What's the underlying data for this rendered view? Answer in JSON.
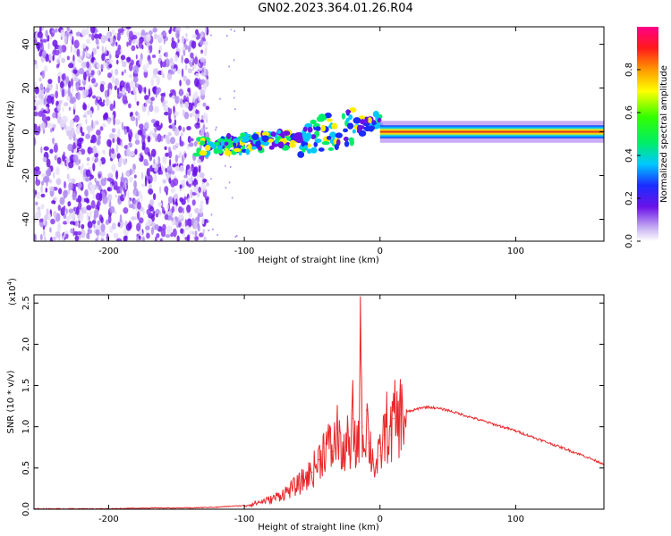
{
  "title": "GN02.2023.364.01.26.R04",
  "colors": {
    "snr_line": "#e8282b",
    "spectrogram_low": "#d8c8f0",
    "spectrogram_mid": "#6a12e8",
    "spectrogram_peak": "#e03020",
    "background": "#ffffff",
    "axis": "#000000"
  },
  "chart_data": [
    {
      "type": "heatmap",
      "name": "spectrogram",
      "title": "",
      "xlabel": "Height of straight line (km)",
      "ylabel": "Frequency (Hz)",
      "xlim": [
        -255,
        165
      ],
      "ylim": [
        -50,
        48
      ],
      "x_ticks": [
        -200,
        -100,
        0,
        100
      ],
      "y_ticks": [
        -40,
        -20,
        0,
        20,
        40
      ],
      "x_tick_labels": [
        "-200",
        "-100",
        "0",
        "100"
      ],
      "y_tick_labels": [
        "-40",
        "-20",
        "0",
        "20",
        "40"
      ],
      "colorbar": {
        "label": "Normalized spectral amplitude",
        "range": [
          0.0,
          1.0
        ],
        "ticks": [
          0.0,
          0.2,
          0.4,
          0.6,
          0.8
        ],
        "tick_labels": [
          "0.0",
          "0.2",
          "0.4",
          "0.6",
          "0.8"
        ],
        "colormap": "rainbow (white-violet-blue-cyan-green-yellow-red-magenta)"
      },
      "features": [
        {
          "x_range": [
            -255,
            -135
          ],
          "description": "broadband noise, amplitude ~0.2-0.3"
        },
        {
          "x_range": [
            -135,
            0
          ],
          "center_frequency": 0,
          "description": "rising narrow band, amplitude ~0.4-0.8"
        },
        {
          "x_range": [
            0,
            165
          ],
          "center_frequency": 0,
          "description": "steady carrier line, amplitude ~1.0"
        }
      ]
    },
    {
      "type": "line",
      "name": "snr",
      "title": "",
      "xlabel": "Height of straight line (km)",
      "ylabel": "SNR (10 * v/v)",
      "multiplier_label": "(x10",
      "multiplier_exponent": "4",
      "multiplier_close": ")",
      "xlim": [
        -255,
        165
      ],
      "ylim": [
        0.0,
        2.6
      ],
      "x_ticks": [
        -200,
        -100,
        0,
        100
      ],
      "y_ticks": [
        0.0,
        0.5,
        1.0,
        1.5,
        2.0,
        2.5
      ],
      "x_tick_labels": [
        "-200",
        "-100",
        "0",
        "100"
      ],
      "y_tick_labels": [
        "0.0",
        "0.5",
        "1.0",
        "1.5",
        "2.0",
        "2.5"
      ],
      "series": [
        {
          "x": [
            -255,
            -230,
            -200,
            -170,
            -140,
            -120,
            -100,
            -90,
            -80,
            -70,
            -60,
            -50,
            -45,
            -40,
            -35,
            -30,
            -28,
            -25,
            -22,
            -20,
            -18,
            -15,
            -14,
            -13,
            -12,
            -10,
            -8,
            -5,
            -3,
            0,
            3,
            5,
            8,
            10,
            13,
            15,
            18,
            20,
            25,
            30,
            35,
            40,
            50,
            60,
            70,
            80,
            90,
            100,
            110,
            120,
            130,
            140,
            150,
            160,
            165
          ],
          "y": [
            0.0,
            0.0,
            0.0,
            0.01,
            0.01,
            0.02,
            0.04,
            0.08,
            0.12,
            0.2,
            0.3,
            0.45,
            0.6,
            0.8,
            0.7,
            1.0,
            0.5,
            0.9,
            0.6,
            1.1,
            0.7,
            1.05,
            2.6,
            1.0,
            0.7,
            1.2,
            0.8,
            0.6,
            0.5,
            0.65,
            0.9,
            1.0,
            0.9,
            1.1,
            1.05,
            1.15,
            1.1,
            1.18,
            1.2,
            1.23,
            1.24,
            1.23,
            1.2,
            1.15,
            1.1,
            1.05,
            1.0,
            0.95,
            0.89,
            0.83,
            0.77,
            0.71,
            0.65,
            0.58,
            0.55
          ]
        }
      ]
    }
  ]
}
